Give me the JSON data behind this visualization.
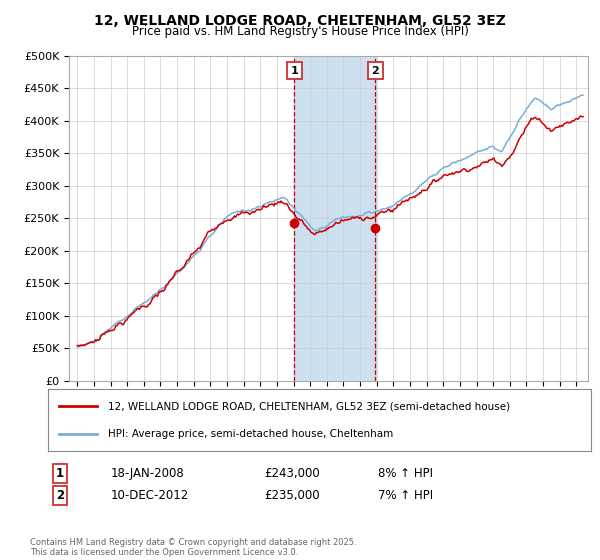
{
  "title1": "12, WELLAND LODGE ROAD, CHELTENHAM, GL52 3EZ",
  "title2": "Price paid vs. HM Land Registry's House Price Index (HPI)",
  "ylabel_ticks": [
    "£0",
    "£50K",
    "£100K",
    "£150K",
    "£200K",
    "£250K",
    "£300K",
    "£350K",
    "£400K",
    "£450K",
    "£500K"
  ],
  "ytick_values": [
    0,
    50000,
    100000,
    150000,
    200000,
    250000,
    300000,
    350000,
    400000,
    450000,
    500000
  ],
  "ylim": [
    0,
    500000
  ],
  "xlim_start": 1994.5,
  "xlim_end": 2025.7,
  "hpi_color": "#7aaed6",
  "price_color": "#cc0000",
  "shaded_region": [
    2008.05,
    2012.95
  ],
  "shaded_color": "#cce0f0",
  "vline_color": "#cc0000",
  "vline_style": "--",
  "marker1_x": 2008.05,
  "marker1_y": 243000,
  "marker1_label": "1",
  "marker2_x": 2012.92,
  "marker2_y": 235000,
  "marker2_label": "2",
  "legend_line1": "12, WELLAND LODGE ROAD, CHELTENHAM, GL52 3EZ (semi-detached house)",
  "legend_line2": "HPI: Average price, semi-detached house, Cheltenham",
  "annotation1": [
    "1",
    "18-JAN-2008",
    "£243,000",
    "8% ↑ HPI"
  ],
  "annotation2": [
    "2",
    "10-DEC-2012",
    "£235,000",
    "7% ↑ HPI"
  ],
  "footer": "Contains HM Land Registry data © Crown copyright and database right 2025.\nThis data is licensed under the Open Government Licence v3.0.",
  "xtick_years": [
    1995,
    1996,
    1997,
    1998,
    1999,
    2000,
    2001,
    2002,
    2003,
    2004,
    2005,
    2006,
    2007,
    2008,
    2009,
    2010,
    2011,
    2012,
    2013,
    2014,
    2015,
    2016,
    2017,
    2018,
    2019,
    2020,
    2021,
    2022,
    2023,
    2024,
    2025
  ],
  "background_color": "#ffffff"
}
